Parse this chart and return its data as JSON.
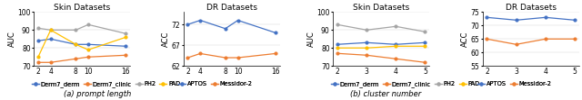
{
  "prompt_length": {
    "x": [
      2,
      4,
      8,
      10,
      16
    ],
    "skin": {
      "title": "Skin Datasets",
      "ylabel": "AUC",
      "ylim": [
        70,
        100
      ],
      "yticks": [
        70,
        80,
        90,
        100
      ],
      "series": {
        "Derm7_derm": {
          "values": [
            84,
            85,
            82,
            82,
            81
          ],
          "color": "#4472C4",
          "marker": "o"
        },
        "Derm7_clinic": {
          "values": [
            72,
            72,
            74,
            75,
            76
          ],
          "color": "#ED7D31",
          "marker": "o"
        },
        "PH2": {
          "values": [
            91,
            90,
            90,
            93,
            88
          ],
          "color": "#A5A5A5",
          "marker": "o"
        },
        "PAD": {
          "values": [
            75,
            90,
            82,
            79,
            86
          ],
          "color": "#FFC000",
          "marker": "o"
        }
      }
    },
    "dr": {
      "title": "DR Datasets",
      "ylabel": "ACC",
      "ylim": [
        62,
        75
      ],
      "yticks": [
        62,
        67,
        72
      ],
      "series": {
        "APTOS": {
          "values": [
            72,
            73,
            71,
            73,
            70
          ],
          "color": "#4472C4",
          "marker": "o"
        },
        "Messidor-2": {
          "values": [
            64,
            65,
            64,
            64,
            65
          ],
          "color": "#ED7D31",
          "marker": "o"
        }
      }
    }
  },
  "cluster_number": {
    "x": [
      2,
      3,
      4,
      5
    ],
    "skin": {
      "title": "Skin Datasets",
      "ylabel": "AUC",
      "ylim": [
        70,
        100
      ],
      "yticks": [
        70,
        80,
        90,
        100
      ],
      "series": {
        "Derm7_derm": {
          "values": [
            82,
            83,
            82,
            83
          ],
          "color": "#4472C4",
          "marker": "o"
        },
        "Derm7_clinic": {
          "values": [
            77,
            76,
            74,
            72
          ],
          "color": "#ED7D31",
          "marker": "o"
        },
        "PH2": {
          "values": [
            93,
            90,
            92,
            89
          ],
          "color": "#A5A5A5",
          "marker": "o"
        },
        "PAD": {
          "values": [
            80,
            80,
            81,
            81
          ],
          "color": "#FFC000",
          "marker": "o"
        }
      }
    },
    "dr": {
      "title": "DR Datasets",
      "ylabel": "ACC",
      "ylim": [
        55,
        75
      ],
      "yticks": [
        55,
        60,
        65,
        70,
        75
      ],
      "series": {
        "APTOS": {
          "values": [
            73,
            72,
            73,
            72
          ],
          "color": "#4472C4",
          "marker": "o"
        },
        "Messidor-2": {
          "values": [
            65,
            63,
            65,
            65
          ],
          "color": "#ED7D31",
          "marker": "o"
        }
      }
    }
  },
  "caption_a": "(a) prompt length",
  "caption_b": "(b) cluster number",
  "title_fontsize": 6.5,
  "label_fontsize": 6,
  "tick_fontsize": 5.5,
  "legend_fontsize": 4.8,
  "line_width": 0.9,
  "marker_size": 2.0
}
